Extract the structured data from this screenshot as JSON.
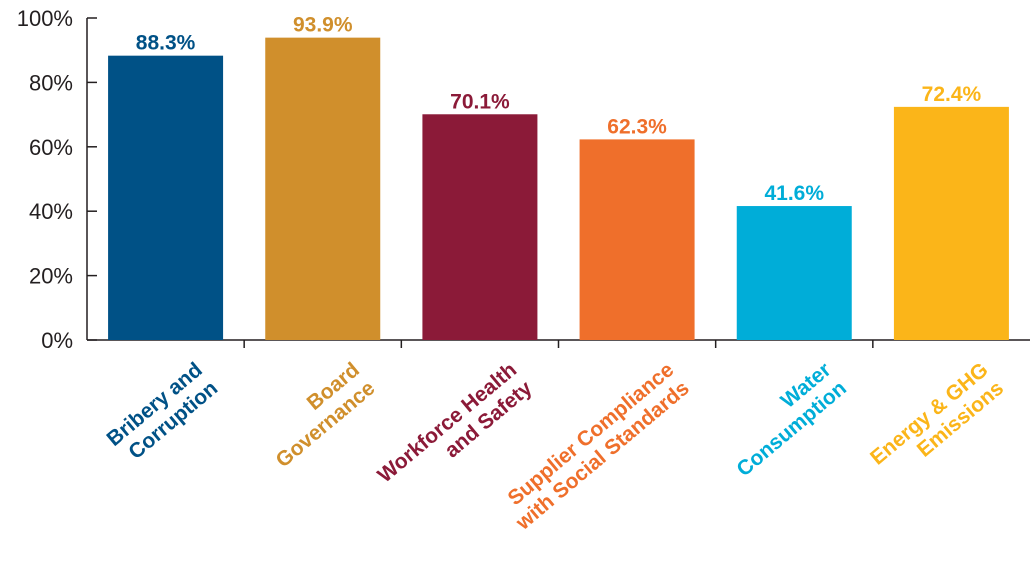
{
  "chart_data": {
    "type": "bar",
    "title": "",
    "xlabel": "",
    "ylabel": "",
    "ylim": [
      0,
      100
    ],
    "yticks": [
      0,
      20,
      40,
      60,
      80,
      100
    ],
    "ytick_labels": [
      "0%",
      "20%",
      "40%",
      "60%",
      "80%",
      "100%"
    ],
    "grid": false,
    "legend": "none",
    "categories": [
      [
        "Bribery and",
        "Corruption"
      ],
      [
        "Board",
        "Governance"
      ],
      [
        "Workforce Health",
        "and Safety"
      ],
      [
        "Supplier Compliance",
        "with Social Standards"
      ],
      [
        "Water",
        "Consumption"
      ],
      [
        "Energy & GHG",
        "Emissions"
      ]
    ],
    "values": [
      88.3,
      93.9,
      70.1,
      62.3,
      41.6,
      72.4
    ],
    "value_labels": [
      "88.3%",
      "93.9%",
      "70.1%",
      "62.3%",
      "41.6%",
      "72.4%"
    ],
    "colors": [
      "#005186",
      "#d08f2c",
      "#8b1a38",
      "#ef6f2b",
      "#00add8",
      "#fbb519"
    ]
  }
}
